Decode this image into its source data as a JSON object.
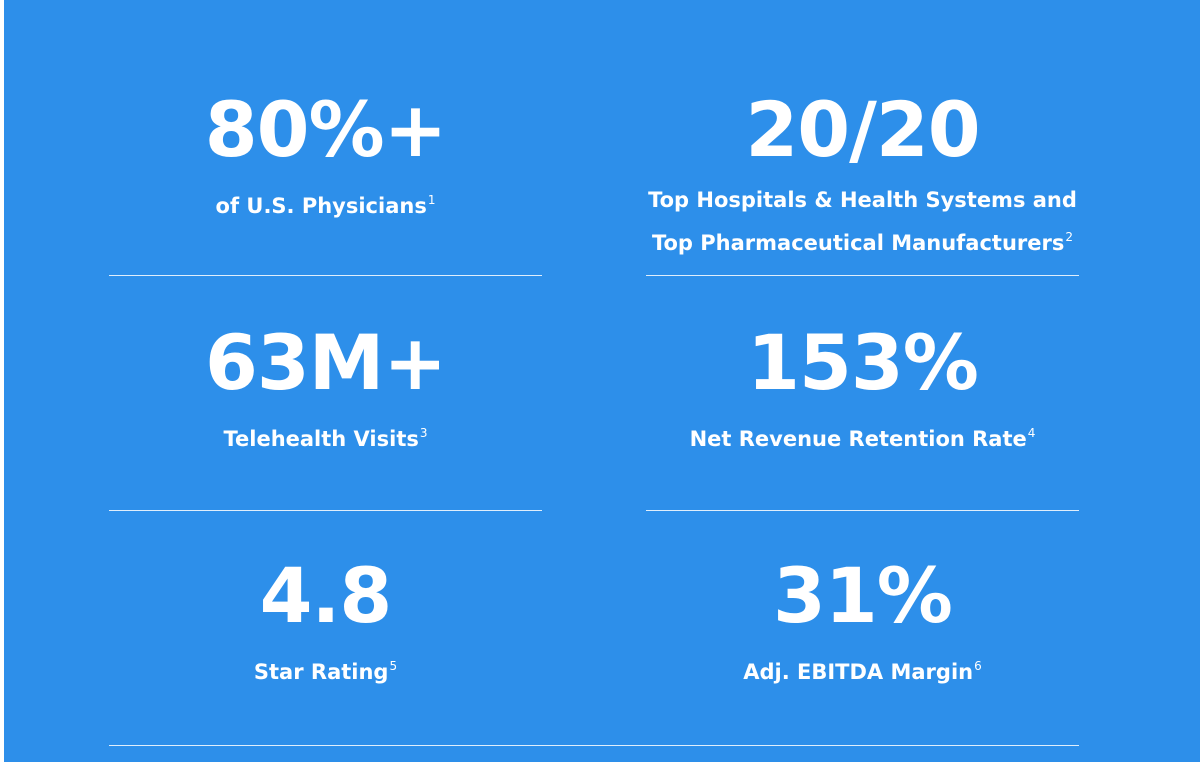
{
  "stats": [
    {
      "value": "80%+",
      "label": [
        "of U.S. Physicians"
      ],
      "note": "1"
    },
    {
      "value": "20/20",
      "label": [
        "Top Hospitals & Health Systems and",
        "Top Pharmaceutical Manufacturers"
      ],
      "note": "2"
    },
    {
      "value": "63M+",
      "label": [
        "Telehealth Visits"
      ],
      "note": "3"
    },
    {
      "value": "153%",
      "label": [
        "Net Revenue Retention Rate"
      ],
      "note": "4"
    },
    {
      "value": "4.8",
      "label": [
        "Star Rating"
      ],
      "note": "5"
    },
    {
      "value": "31%",
      "label": [
        "Adj. EBITDA Margin"
      ],
      "note": "6"
    }
  ]
}
